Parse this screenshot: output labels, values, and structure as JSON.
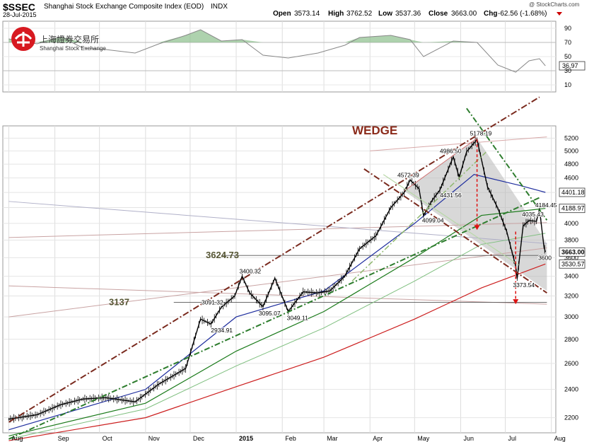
{
  "header": {
    "symbol": "$SSEC",
    "name": "Shanghai Stock Exchange Composite Index (EOD)",
    "exchange": "INDX",
    "date": "28-Jul-2015",
    "open_label": "Open",
    "open": "3573.14",
    "high_label": "High",
    "high": "3762.52",
    "low_label": "Low",
    "low": "3537.36",
    "close_label": "Close",
    "close": "3663.00",
    "chg_label": "Chg",
    "chg": "-62.56 (-1.68%)",
    "watermark": "@ StockCharts.com"
  },
  "logo": {
    "cn": "上海證券交易所",
    "en": "Shanghai Stock Exchange"
  },
  "colors": {
    "price": "#000000",
    "ma50": "#1f2e9e",
    "ma100": "#1a7a1a",
    "ma200": "#cc1f1f",
    "rsi": "#888888",
    "rsi_fill": "#8cbf8c",
    "trend_dark": "#7a2a1e",
    "green_dash": "#2e7d2e",
    "wedge_fill": "#b8b8b8",
    "arrow": "#dd1111",
    "label_olive": "#555533",
    "wedge_title": "#8b2a1a"
  },
  "chart_data": {
    "type": "line",
    "price_panel": {
      "y_axis": {
        "scale": "log",
        "ylim": [
          2100,
          5400
        ],
        "ticks": [
          2200,
          2400,
          2600,
          2800,
          3000,
          3200,
          3400,
          3600,
          3800,
          4000,
          4200,
          4400,
          4600,
          4800,
          5000,
          5200
        ]
      },
      "x_axis": {
        "ticks": [
          "Aug",
          "Sep",
          "Oct",
          "Nov",
          "Dec",
          "2015",
          "Feb",
          "Mar",
          "Apr",
          "May",
          "Jun",
          "Jul",
          "Aug"
        ]
      },
      "price_path": [
        [
          "2014-08-01",
          2190
        ],
        [
          "2014-08-20",
          2220
        ],
        [
          "2014-09-05",
          2290
        ],
        [
          "2014-09-20",
          2330
        ],
        [
          "2014-10-05",
          2340
        ],
        [
          "2014-10-25",
          2310
        ],
        [
          "2014-11-10",
          2440
        ],
        [
          "2014-11-28",
          2560
        ],
        [
          "2014-12-08",
          2980
        ],
        [
          "2014-12-15",
          2934.91
        ],
        [
          "2014-12-22",
          3091.32
        ],
        [
          "2014-12-31",
          3200
        ],
        [
          "2015-01-05",
          3400.32
        ],
        [
          "2015-01-10",
          3230
        ],
        [
          "2015-01-19",
          3095.07
        ],
        [
          "2015-01-27",
          3380
        ],
        [
          "2015-02-05",
          3049.11
        ],
        [
          "2015-02-15",
          3240
        ],
        [
          "2015-02-25",
          3230
        ],
        [
          "2015-03-05",
          3250
        ],
        [
          "2015-03-15",
          3400
        ],
        [
          "2015-03-25",
          3700
        ],
        [
          "2015-04-05",
          3850
        ],
        [
          "2015-04-15",
          4200
        ],
        [
          "2015-04-24",
          4400
        ],
        [
          "2015-04-28",
          4572.39
        ],
        [
          "2015-05-04",
          4450
        ],
        [
          "2015-05-07",
          4099.04
        ],
        [
          "2015-05-13",
          4300
        ],
        [
          "2015-05-18",
          4431.56
        ],
        [
          "2015-05-27",
          4910
        ],
        [
          "2015-05-31",
          4611
        ],
        [
          "2015-06-05",
          4986.5
        ],
        [
          "2015-06-12",
          5178.19
        ],
        [
          "2015-06-19",
          4480
        ],
        [
          "2015-06-26",
          4190
        ],
        [
          "2015-07-02",
          3900
        ],
        [
          "2015-07-08",
          3507
        ],
        [
          "2015-07-09",
          3373.54
        ],
        [
          "2015-07-13",
          3970
        ],
        [
          "2015-07-17",
          4035.43
        ],
        [
          "2015-07-22",
          4026
        ],
        [
          "2015-07-24",
          4184.45
        ],
        [
          "2015-07-27",
          3725
        ],
        [
          "2015-07-28",
          3663.0
        ]
      ],
      "series": [
        {
          "name": "MA50",
          "last": 4401.18
        },
        {
          "name": "MA100",
          "last": 4188.97
        },
        {
          "name": "MA200",
          "last": 3530.57
        }
      ],
      "right_labels": [
        {
          "value": "4401.18",
          "price": 4401.18
        },
        {
          "value": "4188.97",
          "price": 4188.97
        },
        {
          "value": "3663.00",
          "price": 3663.0
        },
        {
          "value": "3530.57",
          "price": 3530.57
        }
      ],
      "annotations": {
        "wedge": "WEDGE",
        "level_high": "3624.73",
        "level_low": "3137",
        "peaks": [
          "5178.19",
          "4986.50",
          "4572.39",
          "4431.56",
          "4099.04",
          "4035.43",
          "4184.45",
          "3373.54",
          "3400.32",
          "3091.32",
          "2934.91",
          "3095.07",
          "3049.11",
          "3600"
        ]
      }
    },
    "rsi_panel": {
      "ylim": [
        0,
        100
      ],
      "ticks": [
        10,
        30,
        50,
        70,
        90
      ],
      "last": 36.97,
      "last_label": "36.97",
      "path": [
        [
          "2014-08-01",
          75
        ],
        [
          "2014-08-20",
          68
        ],
        [
          "2014-09-05",
          78
        ],
        [
          "2014-09-20",
          62
        ],
        [
          "2014-10-05",
          60
        ],
        [
          "2014-10-25",
          55
        ],
        [
          "2014-11-10",
          68
        ],
        [
          "2014-11-28",
          80
        ],
        [
          "2014-12-08",
          88
        ],
        [
          "2014-12-22",
          72
        ],
        [
          "2015-01-05",
          74
        ],
        [
          "2015-01-19",
          52
        ],
        [
          "2015-02-05",
          48
        ],
        [
          "2015-02-25",
          55
        ],
        [
          "2015-03-15",
          66
        ],
        [
          "2015-03-25",
          77
        ],
        [
          "2015-04-15",
          80
        ],
        [
          "2015-04-28",
          74
        ],
        [
          "2015-05-07",
          50
        ],
        [
          "2015-05-27",
          72
        ],
        [
          "2015-06-12",
          70
        ],
        [
          "2015-06-26",
          38
        ],
        [
          "2015-07-08",
          28
        ],
        [
          "2015-07-17",
          44
        ],
        [
          "2015-07-24",
          47
        ],
        [
          "2015-07-28",
          36.97
        ]
      ]
    }
  }
}
